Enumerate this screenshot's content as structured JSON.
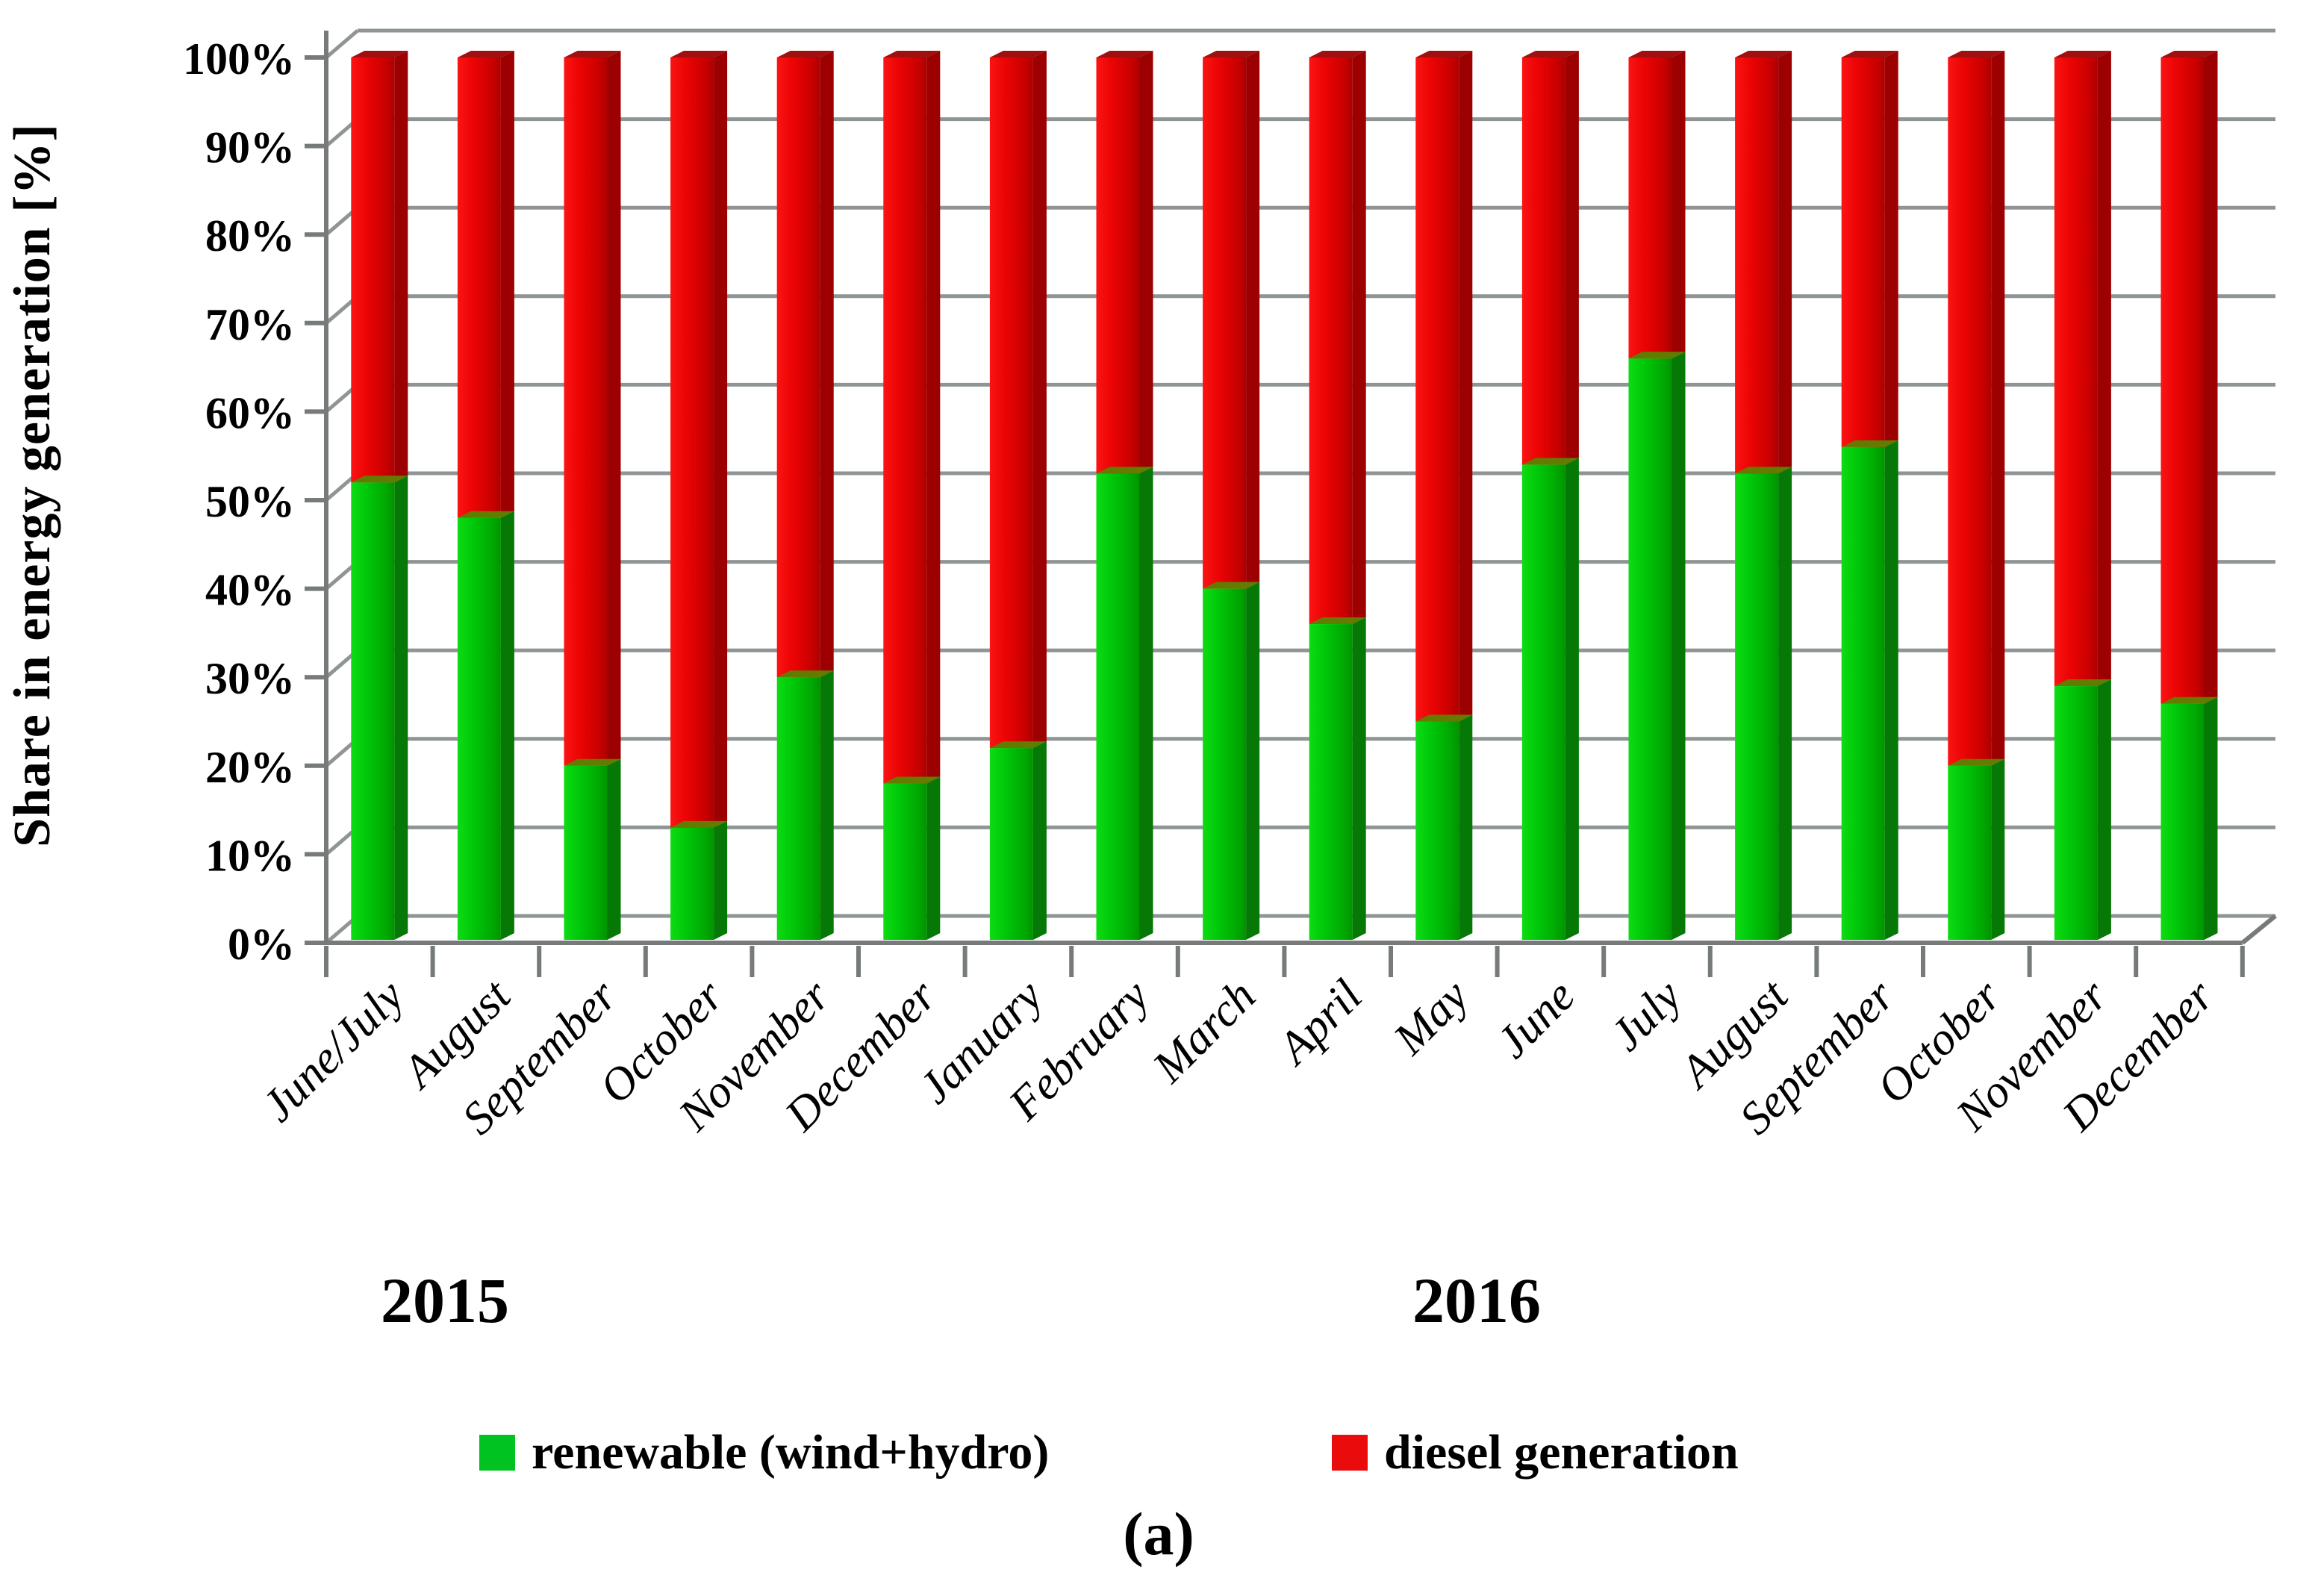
{
  "figure": {
    "y_axis_title": "Share in energy generation [%]",
    "year_labels": [
      {
        "text": "2015"
      },
      {
        "text": "2016"
      }
    ],
    "legend": [
      {
        "label": "renewable (wind+hydro)",
        "color": "#00c221"
      },
      {
        "label": "diesel generation",
        "color": "#ea0c0c"
      }
    ],
    "caption": "(a)"
  },
  "chart_data": {
    "type": "bar",
    "stacked": true,
    "title": "",
    "xlabel": "",
    "ylabel": "Share in energy generation [%]",
    "ylim": [
      0,
      100
    ],
    "grid": true,
    "legend_position": "bottom",
    "y_ticks": [
      "100%",
      "90%",
      "80%",
      "70%",
      "60%",
      "50%",
      "40%",
      "30%",
      "20%",
      "10%",
      "0%"
    ],
    "categories": [
      "June/July",
      "August",
      "September",
      "October",
      "November",
      "December",
      "January",
      "February",
      "March",
      "April",
      "May",
      "June",
      "July",
      "August",
      "September",
      "October",
      "November",
      "December"
    ],
    "year_groups": [
      {
        "label": "2015",
        "category_indexes": [
          0,
          1,
          2,
          3,
          4,
          5
        ]
      },
      {
        "label": "2016",
        "category_indexes": [
          6,
          7,
          8,
          9,
          10,
          11,
          12,
          13,
          14,
          15,
          16,
          17
        ]
      }
    ],
    "series": [
      {
        "name": "renewable (wind+hydro)",
        "color": "#00c000",
        "values": [
          52,
          48,
          20,
          13,
          30,
          18,
          22,
          53,
          40,
          36,
          25,
          54,
          66,
          53,
          56,
          20,
          29,
          27
        ]
      },
      {
        "name": "diesel generation",
        "color": "#e60000",
        "values": [
          48,
          52,
          80,
          87,
          70,
          82,
          78,
          47,
          60,
          64,
          75,
          46,
          34,
          47,
          44,
          80,
          71,
          73
        ]
      }
    ]
  }
}
